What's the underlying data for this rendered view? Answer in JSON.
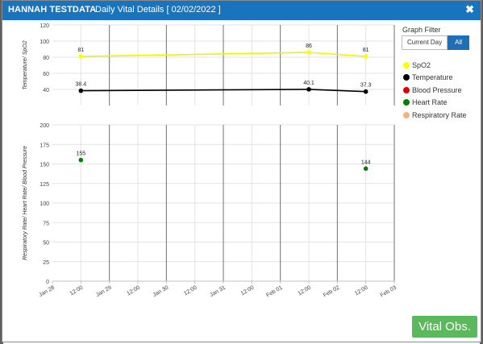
{
  "dialog": {
    "patient_name": "HANNAH TESTDATA",
    "subtitle": "Daily Vital Details [ 02/02/2022 ]",
    "close_glyph": "✖"
  },
  "filter": {
    "title": "Graph Filter",
    "options": [
      "Current Day",
      "All"
    ],
    "selected": "All"
  },
  "legend": [
    {
      "name": "SpO2",
      "color": "#ffff00"
    },
    {
      "name": "Temperature",
      "color": "#000000"
    },
    {
      "name": "Blood Pressure",
      "color": "#e00000"
    },
    {
      "name": "Heart Rate",
      "color": "#008000"
    },
    {
      "name": "Respiratory Rate",
      "color": "#f4b183"
    }
  ],
  "chart_data": {
    "type": "line",
    "x_ticks": [
      "Jan 28",
      "12:00",
      "Jan 29",
      "12:00",
      "Jan 30",
      "12:00",
      "Jan 31",
      "12:00",
      "Feb 01",
      "12:00",
      "Feb 02",
      "12:00",
      "Feb 03"
    ],
    "x_range": [
      "2022-01-28 00:00",
      "2022-02-03 00:00"
    ],
    "panels": [
      {
        "ylabel": "Temperature/ SpO2",
        "ylim": [
          20,
          120
        ],
        "y_ticks": [
          40,
          60,
          80,
          100,
          120
        ],
        "series": [
          {
            "name": "SpO2",
            "color": "#ffff00",
            "points": [
              {
                "x": "2022-01-28 12:00",
                "y": 81
              },
              {
                "x": "2022-02-01 12:00",
                "y": 86
              },
              {
                "x": "2022-02-02 12:00",
                "y": 81
              }
            ]
          },
          {
            "name": "Temperature",
            "color": "#000000",
            "points": [
              {
                "x": "2022-01-28 12:00",
                "y": 38.4
              },
              {
                "x": "2022-02-01 12:00",
                "y": 40.1
              },
              {
                "x": "2022-02-02 12:00",
                "y": 37.3
              }
            ]
          }
        ]
      },
      {
        "ylabel": "Respiratory Rate/ Heart Rate/ Blood Pressure",
        "ylim": [
          0,
          200
        ],
        "y_ticks": [
          0,
          25,
          50,
          75,
          100,
          125,
          150,
          175,
          200
        ],
        "series": [
          {
            "name": "Heart Rate",
            "color": "#008000",
            "connected": false,
            "points": [
              {
                "x": "2022-01-28 12:00",
                "y": 155
              },
              {
                "x": "2022-02-02 12:00",
                "y": 144
              }
            ]
          }
        ]
      }
    ]
  },
  "actions": {
    "vital_obs_label": "Vital Obs."
  }
}
